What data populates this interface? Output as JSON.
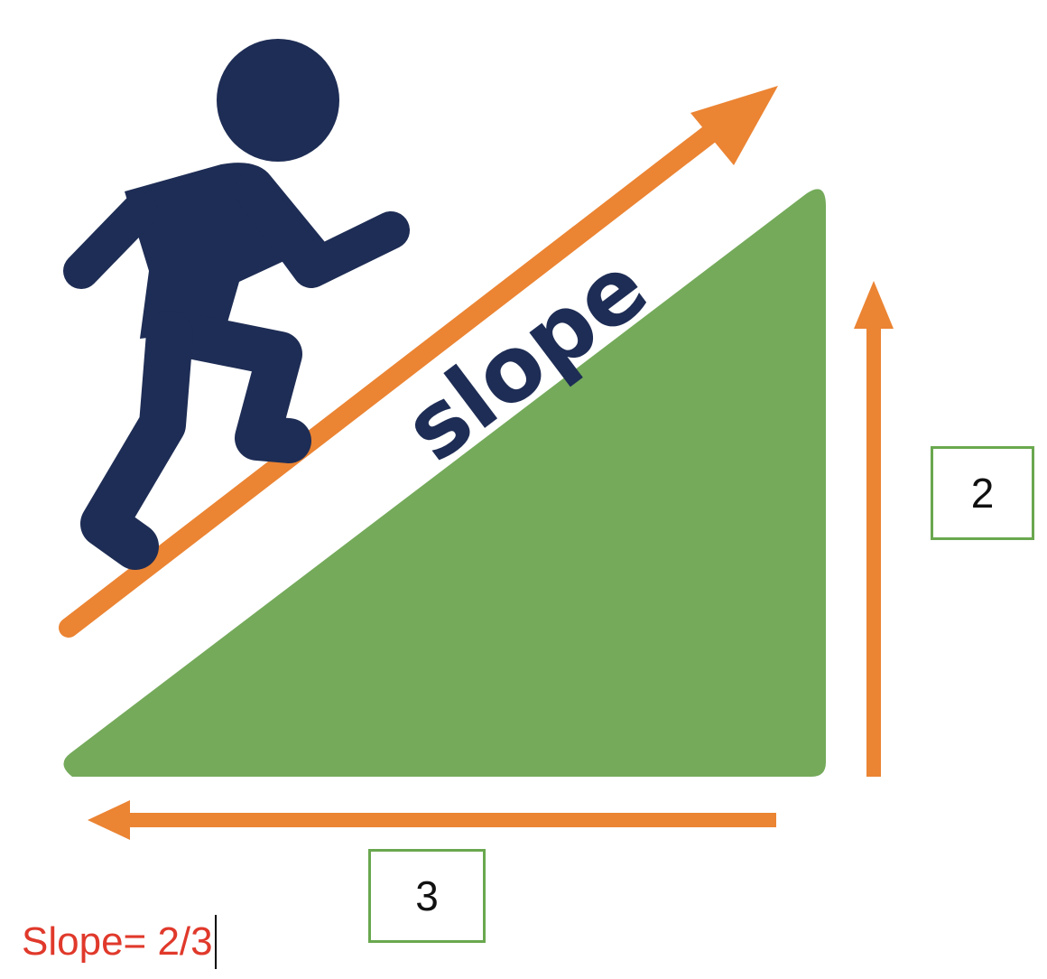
{
  "diagram": {
    "slope_word": "slope",
    "rise_value": "2",
    "run_value": "3",
    "formula": "Slope= 2/3"
  },
  "colors": {
    "hill": "#74aa5a",
    "arrow": "#eb8433",
    "figure": "#1e2d55",
    "box_border": "#6aa84f",
    "formula_text": "#e0392b"
  },
  "icons": {
    "figure": "person-climbing-icon"
  }
}
